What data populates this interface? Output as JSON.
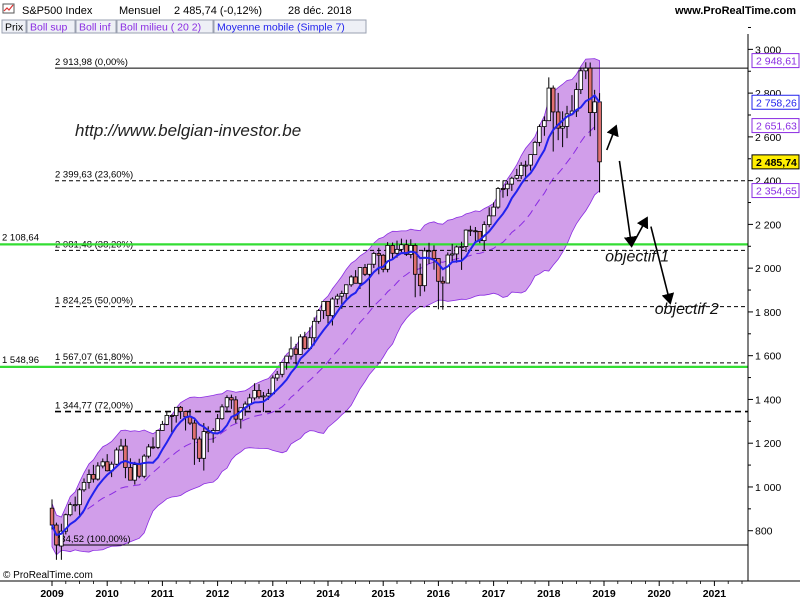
{
  "header": {
    "icon": "line-chart-icon",
    "symbol": "S&P500 Index",
    "period": "Mensuel",
    "last": "2 485,74 (-0,12%)",
    "date": "28 déc. 2018",
    "website": "www.ProRealTime.com"
  },
  "legend_tabs": [
    {
      "label": "Prix",
      "color": "#000000"
    },
    {
      "label": "Boll sup",
      "color": "#8a2be2"
    },
    {
      "label": "Boll inf",
      "color": "#8a2be2"
    },
    {
      "label": "Boll milieu ( 20 2)",
      "color": "#8a2be2"
    },
    {
      "label": "Moyenne mobile (Simple 7)",
      "color": "#2222ee"
    }
  ],
  "watermark": "http://www.belgian-investor.be",
  "copyright": "© ProRealTime.com",
  "colors": {
    "up_candle": "#ffffff",
    "down_candle": "#e07070",
    "band_fill": "#c98de6",
    "band_edge": "#8a2be2",
    "sma": "#2222ee",
    "support": "#33dd33",
    "grid_axis": "#000000"
  },
  "chart_data": {
    "type": "candlestick",
    "xlabel": "",
    "ylabel": "",
    "ylim": [
      640,
      3030
    ],
    "xlim": [
      2009.0,
      2022.0
    ],
    "x_ticks": [
      "2009",
      "2010",
      "2011",
      "2012",
      "2013",
      "2014",
      "2015",
      "2016",
      "2017",
      "2018",
      "2019",
      "2020",
      "2021"
    ],
    "y_ticks": [
      800,
      1000,
      1200,
      1400,
      1600,
      1800,
      2000,
      2200,
      2400,
      2600,
      2800,
      3000
    ],
    "y_tick_labels": [
      "800",
      "1 000",
      "1 200",
      "1 400",
      "1 600",
      "1 800",
      "2 000",
      "2 200",
      "2 400",
      "2 600",
      "2 800",
      "3 000"
    ],
    "price_tags": [
      {
        "label": "2 948,61",
        "value": 2948.61,
        "color": "#8a2be2",
        "bold": false
      },
      {
        "label": "2 758,26",
        "value": 2758.26,
        "color": "#2222ee",
        "bold": false
      },
      {
        "label": "2 651,63",
        "value": 2651.63,
        "color": "#8a2be2",
        "bold": false
      },
      {
        "label": "2 485,74",
        "value": 2485.74,
        "color": "#000000",
        "bold": true,
        "highlight": "#ffee00"
      },
      {
        "label": "2 354,65",
        "value": 2354.65,
        "color": "#8a2be2",
        "bold": false
      }
    ],
    "fibonacci_levels": [
      {
        "label": "2 913,98 (0,00%)",
        "value": 2913.98,
        "style": "solid"
      },
      {
        "label": "2 399,63 (23,60%)",
        "value": 2399.63,
        "style": "dashed"
      },
      {
        "label": "2 081,48 (38,20%)",
        "value": 2081.48,
        "style": "dashed"
      },
      {
        "label": "1 824,25 (50,00%)",
        "value": 1824.25,
        "style": "dashed"
      },
      {
        "label": "1 567,07 (61,80%)",
        "value": 1567.07,
        "style": "dashed"
      },
      {
        "label": "1 344,77 (72,00%)",
        "value": 1344.77,
        "style": "dashed-bold"
      },
      {
        "label": "734,52 (100,00%)",
        "value": 734.52,
        "style": "solid"
      }
    ],
    "support_lines": [
      {
        "label": "2 108,64",
        "value": 2108.64
      },
      {
        "label": "1 548,96",
        "value": 1548.96
      }
    ],
    "annotations": [
      {
        "text": "objectif 1",
        "x": 2019.6,
        "y": 2030
      },
      {
        "text": "objectif 2",
        "x": 2020.5,
        "y": 1790
      }
    ],
    "projection_arrows": [
      {
        "from": [
          2019.05,
          2540
        ],
        "to": [
          2019.22,
          2650
        ]
      },
      {
        "from": [
          2019.28,
          2490
        ],
        "to": [
          2019.5,
          2100
        ]
      },
      {
        "from": [
          2019.5,
          2100
        ],
        "to": [
          2019.78,
          2230
        ]
      },
      {
        "from": [
          2019.85,
          2190
        ],
        "to": [
          2020.2,
          1840
        ]
      }
    ],
    "candles": [
      {
        "d": 2009.0,
        "o": 903,
        "h": 943,
        "l": 805,
        "c": 826
      },
      {
        "d": 2009.08,
        "o": 826,
        "h": 837,
        "l": 667,
        "c": 735
      },
      {
        "d": 2009.17,
        "o": 730,
        "h": 832,
        "l": 667,
        "c": 798
      },
      {
        "d": 2009.25,
        "o": 798,
        "h": 878,
        "l": 783,
        "c": 873
      },
      {
        "d": 2009.33,
        "o": 873,
        "h": 930,
        "l": 866,
        "c": 919
      },
      {
        "d": 2009.42,
        "o": 919,
        "h": 956,
        "l": 888,
        "c": 919
      },
      {
        "d": 2009.5,
        "o": 919,
        "h": 996,
        "l": 869,
        "c": 987
      },
      {
        "d": 2009.58,
        "o": 987,
        "h": 1039,
        "l": 978,
        "c": 1021
      },
      {
        "d": 2009.67,
        "o": 1021,
        "h": 1080,
        "l": 992,
        "c": 1057
      },
      {
        "d": 2009.75,
        "o": 1057,
        "h": 1101,
        "l": 1020,
        "c": 1036
      },
      {
        "d": 2009.83,
        "o": 1036,
        "h": 1113,
        "l": 1029,
        "c": 1096
      },
      {
        "d": 2009.92,
        "o": 1096,
        "h": 1130,
        "l": 1085,
        "c": 1115
      },
      {
        "d": 2010.0,
        "o": 1115,
        "h": 1150,
        "l": 1071,
        "c": 1074
      },
      {
        "d": 2010.08,
        "o": 1074,
        "h": 1116,
        "l": 1045,
        "c": 1104
      },
      {
        "d": 2010.17,
        "o": 1104,
        "h": 1180,
        "l": 1101,
        "c": 1169
      },
      {
        "d": 2010.25,
        "o": 1169,
        "h": 1220,
        "l": 1166,
        "c": 1187
      },
      {
        "d": 2010.33,
        "o": 1187,
        "h": 1220,
        "l": 1040,
        "c": 1089
      },
      {
        "d": 2010.42,
        "o": 1089,
        "h": 1131,
        "l": 1043,
        "c": 1031
      },
      {
        "d": 2010.5,
        "o": 1031,
        "h": 1115,
        "l": 1011,
        "c": 1102
      },
      {
        "d": 2010.58,
        "o": 1102,
        "h": 1129,
        "l": 1040,
        "c": 1049
      },
      {
        "d": 2010.67,
        "o": 1049,
        "h": 1150,
        "l": 1040,
        "c": 1141
      },
      {
        "d": 2010.75,
        "o": 1141,
        "h": 1196,
        "l": 1131,
        "c": 1183
      },
      {
        "d": 2010.83,
        "o": 1183,
        "h": 1227,
        "l": 1173,
        "c": 1181
      },
      {
        "d": 2010.92,
        "o": 1181,
        "h": 1262,
        "l": 1173,
        "c": 1258
      },
      {
        "d": 2011.0,
        "o": 1258,
        "h": 1302,
        "l": 1257,
        "c": 1286
      },
      {
        "d": 2011.08,
        "o": 1286,
        "h": 1344,
        "l": 1282,
        "c": 1327
      },
      {
        "d": 2011.17,
        "o": 1327,
        "h": 1332,
        "l": 1249,
        "c": 1326
      },
      {
        "d": 2011.25,
        "o": 1326,
        "h": 1364,
        "l": 1294,
        "c": 1364
      },
      {
        "d": 2011.33,
        "o": 1364,
        "h": 1370,
        "l": 1311,
        "c": 1345
      },
      {
        "d": 2011.42,
        "o": 1345,
        "h": 1345,
        "l": 1258,
        "c": 1321
      },
      {
        "d": 2011.5,
        "o": 1321,
        "h": 1356,
        "l": 1283,
        "c": 1292
      },
      {
        "d": 2011.58,
        "o": 1292,
        "h": 1307,
        "l": 1101,
        "c": 1219
      },
      {
        "d": 2011.67,
        "o": 1219,
        "h": 1230,
        "l": 1114,
        "c": 1131
      },
      {
        "d": 2011.75,
        "o": 1131,
        "h": 1292,
        "l": 1075,
        "c": 1253
      },
      {
        "d": 2011.83,
        "o": 1253,
        "h": 1277,
        "l": 1159,
        "c": 1247
      },
      {
        "d": 2011.92,
        "o": 1247,
        "h": 1269,
        "l": 1202,
        "c": 1258
      },
      {
        "d": 2012.0,
        "o": 1258,
        "h": 1333,
        "l": 1258,
        "c": 1312
      },
      {
        "d": 2012.08,
        "o": 1312,
        "h": 1378,
        "l": 1307,
        "c": 1366
      },
      {
        "d": 2012.17,
        "o": 1366,
        "h": 1419,
        "l": 1341,
        "c": 1408
      },
      {
        "d": 2012.25,
        "o": 1408,
        "h": 1422,
        "l": 1357,
        "c": 1398
      },
      {
        "d": 2012.33,
        "o": 1398,
        "h": 1415,
        "l": 1291,
        "c": 1310
      },
      {
        "d": 2012.42,
        "o": 1310,
        "h": 1363,
        "l": 1267,
        "c": 1362
      },
      {
        "d": 2012.5,
        "o": 1362,
        "h": 1391,
        "l": 1325,
        "c": 1379
      },
      {
        "d": 2012.58,
        "o": 1379,
        "h": 1426,
        "l": 1354,
        "c": 1407
      },
      {
        "d": 2012.67,
        "o": 1407,
        "h": 1474,
        "l": 1396,
        "c": 1441
      },
      {
        "d": 2012.75,
        "o": 1441,
        "h": 1470,
        "l": 1403,
        "c": 1412
      },
      {
        "d": 2012.83,
        "o": 1412,
        "h": 1434,
        "l": 1343,
        "c": 1416
      },
      {
        "d": 2012.92,
        "o": 1416,
        "h": 1448,
        "l": 1398,
        "c": 1426
      },
      {
        "d": 2013.0,
        "o": 1426,
        "h": 1510,
        "l": 1426,
        "c": 1498
      },
      {
        "d": 2013.08,
        "o": 1498,
        "h": 1530,
        "l": 1485,
        "c": 1515
      },
      {
        "d": 2013.17,
        "o": 1515,
        "h": 1570,
        "l": 1501,
        "c": 1569
      },
      {
        "d": 2013.25,
        "o": 1569,
        "h": 1597,
        "l": 1536,
        "c": 1598
      },
      {
        "d": 2013.33,
        "o": 1598,
        "h": 1687,
        "l": 1582,
        "c": 1631
      },
      {
        "d": 2013.42,
        "o": 1631,
        "h": 1654,
        "l": 1560,
        "c": 1606
      },
      {
        "d": 2013.5,
        "o": 1606,
        "h": 1698,
        "l": 1604,
        "c": 1686
      },
      {
        "d": 2013.58,
        "o": 1686,
        "h": 1709,
        "l": 1627,
        "c": 1633
      },
      {
        "d": 2013.67,
        "o": 1633,
        "h": 1730,
        "l": 1633,
        "c": 1682
      },
      {
        "d": 2013.75,
        "o": 1682,
        "h": 1775,
        "l": 1647,
        "c": 1757
      },
      {
        "d": 2013.83,
        "o": 1757,
        "h": 1813,
        "l": 1746,
        "c": 1806
      },
      {
        "d": 2013.92,
        "o": 1806,
        "h": 1849,
        "l": 1768,
        "c": 1848
      },
      {
        "d": 2014.0,
        "o": 1848,
        "h": 1850,
        "l": 1737,
        "c": 1783
      },
      {
        "d": 2014.08,
        "o": 1783,
        "h": 1867,
        "l": 1738,
        "c": 1859
      },
      {
        "d": 2014.17,
        "o": 1859,
        "h": 1883,
        "l": 1834,
        "c": 1872
      },
      {
        "d": 2014.25,
        "o": 1872,
        "h": 1897,
        "l": 1814,
        "c": 1884
      },
      {
        "d": 2014.33,
        "o": 1884,
        "h": 1924,
        "l": 1859,
        "c": 1924
      },
      {
        "d": 2014.42,
        "o": 1924,
        "h": 1968,
        "l": 1915,
        "c": 1960
      },
      {
        "d": 2014.5,
        "o": 1960,
        "h": 1991,
        "l": 1930,
        "c": 1931
      },
      {
        "d": 2014.58,
        "o": 1931,
        "h": 2005,
        "l": 1905,
        "c": 2003
      },
      {
        "d": 2014.67,
        "o": 2003,
        "h": 2019,
        "l": 1964,
        "c": 1972
      },
      {
        "d": 2014.75,
        "o": 1972,
        "h": 2018,
        "l": 1821,
        "c": 2018
      },
      {
        "d": 2014.83,
        "o": 2018,
        "h": 2075,
        "l": 2001,
        "c": 2067
      },
      {
        "d": 2014.92,
        "o": 2067,
        "h": 2093,
        "l": 1972,
        "c": 2059
      },
      {
        "d": 2015.0,
        "o": 2059,
        "h": 2064,
        "l": 1981,
        "c": 1995
      },
      {
        "d": 2015.08,
        "o": 1995,
        "h": 2119,
        "l": 1981,
        "c": 2104
      },
      {
        "d": 2015.17,
        "o": 2104,
        "h": 2117,
        "l": 2039,
        "c": 2068
      },
      {
        "d": 2015.25,
        "o": 2068,
        "h": 2126,
        "l": 2048,
        "c": 2086
      },
      {
        "d": 2015.33,
        "o": 2086,
        "h": 2135,
        "l": 2068,
        "c": 2107
      },
      {
        "d": 2015.42,
        "o": 2107,
        "h": 2130,
        "l": 2056,
        "c": 2063
      },
      {
        "d": 2015.5,
        "o": 2063,
        "h": 2132,
        "l": 2045,
        "c": 2104
      },
      {
        "d": 2015.58,
        "o": 2104,
        "h": 2113,
        "l": 1867,
        "c": 1972
      },
      {
        "d": 2015.67,
        "o": 1972,
        "h": 2021,
        "l": 1872,
        "c": 1920
      },
      {
        "d": 2015.75,
        "o": 1920,
        "h": 2094,
        "l": 1893,
        "c": 2079
      },
      {
        "d": 2015.83,
        "o": 2079,
        "h": 2116,
        "l": 2019,
        "c": 2080
      },
      {
        "d": 2015.92,
        "o": 2080,
        "h": 2104,
        "l": 1993,
        "c": 2044
      },
      {
        "d": 2016.0,
        "o": 2044,
        "h": 2038,
        "l": 1812,
        "c": 1940
      },
      {
        "d": 2016.08,
        "o": 1940,
        "h": 1962,
        "l": 1810,
        "c": 1932
      },
      {
        "d": 2016.17,
        "o": 1932,
        "h": 2072,
        "l": 1937,
        "c": 2060
      },
      {
        "d": 2016.25,
        "o": 2060,
        "h": 2111,
        "l": 2033,
        "c": 2065
      },
      {
        "d": 2016.33,
        "o": 2065,
        "h": 2103,
        "l": 2025,
        "c": 2097
      },
      {
        "d": 2016.42,
        "o": 2097,
        "h": 2121,
        "l": 1992,
        "c": 2099
      },
      {
        "d": 2016.5,
        "o": 2099,
        "h": 2177,
        "l": 2074,
        "c": 2174
      },
      {
        "d": 2016.58,
        "o": 2174,
        "h": 2194,
        "l": 2147,
        "c": 2171
      },
      {
        "d": 2016.67,
        "o": 2171,
        "h": 2188,
        "l": 2120,
        "c": 2168
      },
      {
        "d": 2016.75,
        "o": 2168,
        "h": 2169,
        "l": 2114,
        "c": 2126
      },
      {
        "d": 2016.83,
        "o": 2126,
        "h": 2214,
        "l": 2084,
        "c": 2199
      },
      {
        "d": 2016.92,
        "o": 2199,
        "h": 2278,
        "l": 2187,
        "c": 2239
      },
      {
        "d": 2017.0,
        "o": 2239,
        "h": 2301,
        "l": 2245,
        "c": 2279
      },
      {
        "d": 2017.08,
        "o": 2279,
        "h": 2371,
        "l": 2271,
        "c": 2364
      },
      {
        "d": 2017.17,
        "o": 2364,
        "h": 2401,
        "l": 2322,
        "c": 2363
      },
      {
        "d": 2017.25,
        "o": 2363,
        "h": 2398,
        "l": 2329,
        "c": 2384
      },
      {
        "d": 2017.33,
        "o": 2384,
        "h": 2418,
        "l": 2353,
        "c": 2411
      },
      {
        "d": 2017.42,
        "o": 2411,
        "h": 2454,
        "l": 2405,
        "c": 2423
      },
      {
        "d": 2017.5,
        "o": 2423,
        "h": 2484,
        "l": 2407,
        "c": 2470
      },
      {
        "d": 2017.58,
        "o": 2470,
        "h": 2491,
        "l": 2417,
        "c": 2471
      },
      {
        "d": 2017.67,
        "o": 2471,
        "h": 2519,
        "l": 2446,
        "c": 2519
      },
      {
        "d": 2017.75,
        "o": 2519,
        "h": 2582,
        "l": 2520,
        "c": 2575
      },
      {
        "d": 2017.83,
        "o": 2575,
        "h": 2657,
        "l": 2557,
        "c": 2647
      },
      {
        "d": 2017.92,
        "o": 2647,
        "h": 2694,
        "l": 2605,
        "c": 2674
      },
      {
        "d": 2018.0,
        "o": 2674,
        "h": 2872,
        "l": 2683,
        "c": 2823
      },
      {
        "d": 2018.08,
        "o": 2823,
        "h": 2835,
        "l": 2533,
        "c": 2714
      },
      {
        "d": 2018.17,
        "o": 2714,
        "h": 2801,
        "l": 2585,
        "c": 2640
      },
      {
        "d": 2018.25,
        "o": 2640,
        "h": 2717,
        "l": 2553,
        "c": 2648
      },
      {
        "d": 2018.33,
        "o": 2648,
        "h": 2742,
        "l": 2594,
        "c": 2705
      },
      {
        "d": 2018.42,
        "o": 2705,
        "h": 2791,
        "l": 2698,
        "c": 2718
      },
      {
        "d": 2018.5,
        "o": 2718,
        "h": 2848,
        "l": 2691,
        "c": 2816
      },
      {
        "d": 2018.58,
        "o": 2816,
        "h": 2916,
        "l": 2796,
        "c": 2902
      },
      {
        "d": 2018.67,
        "o": 2902,
        "h": 2941,
        "l": 2864,
        "c": 2914
      },
      {
        "d": 2018.75,
        "o": 2914,
        "h": 2940,
        "l": 2603,
        "c": 2711
      },
      {
        "d": 2018.83,
        "o": 2711,
        "h": 2815,
        "l": 2631,
        "c": 2760
      },
      {
        "d": 2018.92,
        "o": 2760,
        "h": 2800,
        "l": 2346,
        "c": 2486
      }
    ]
  }
}
